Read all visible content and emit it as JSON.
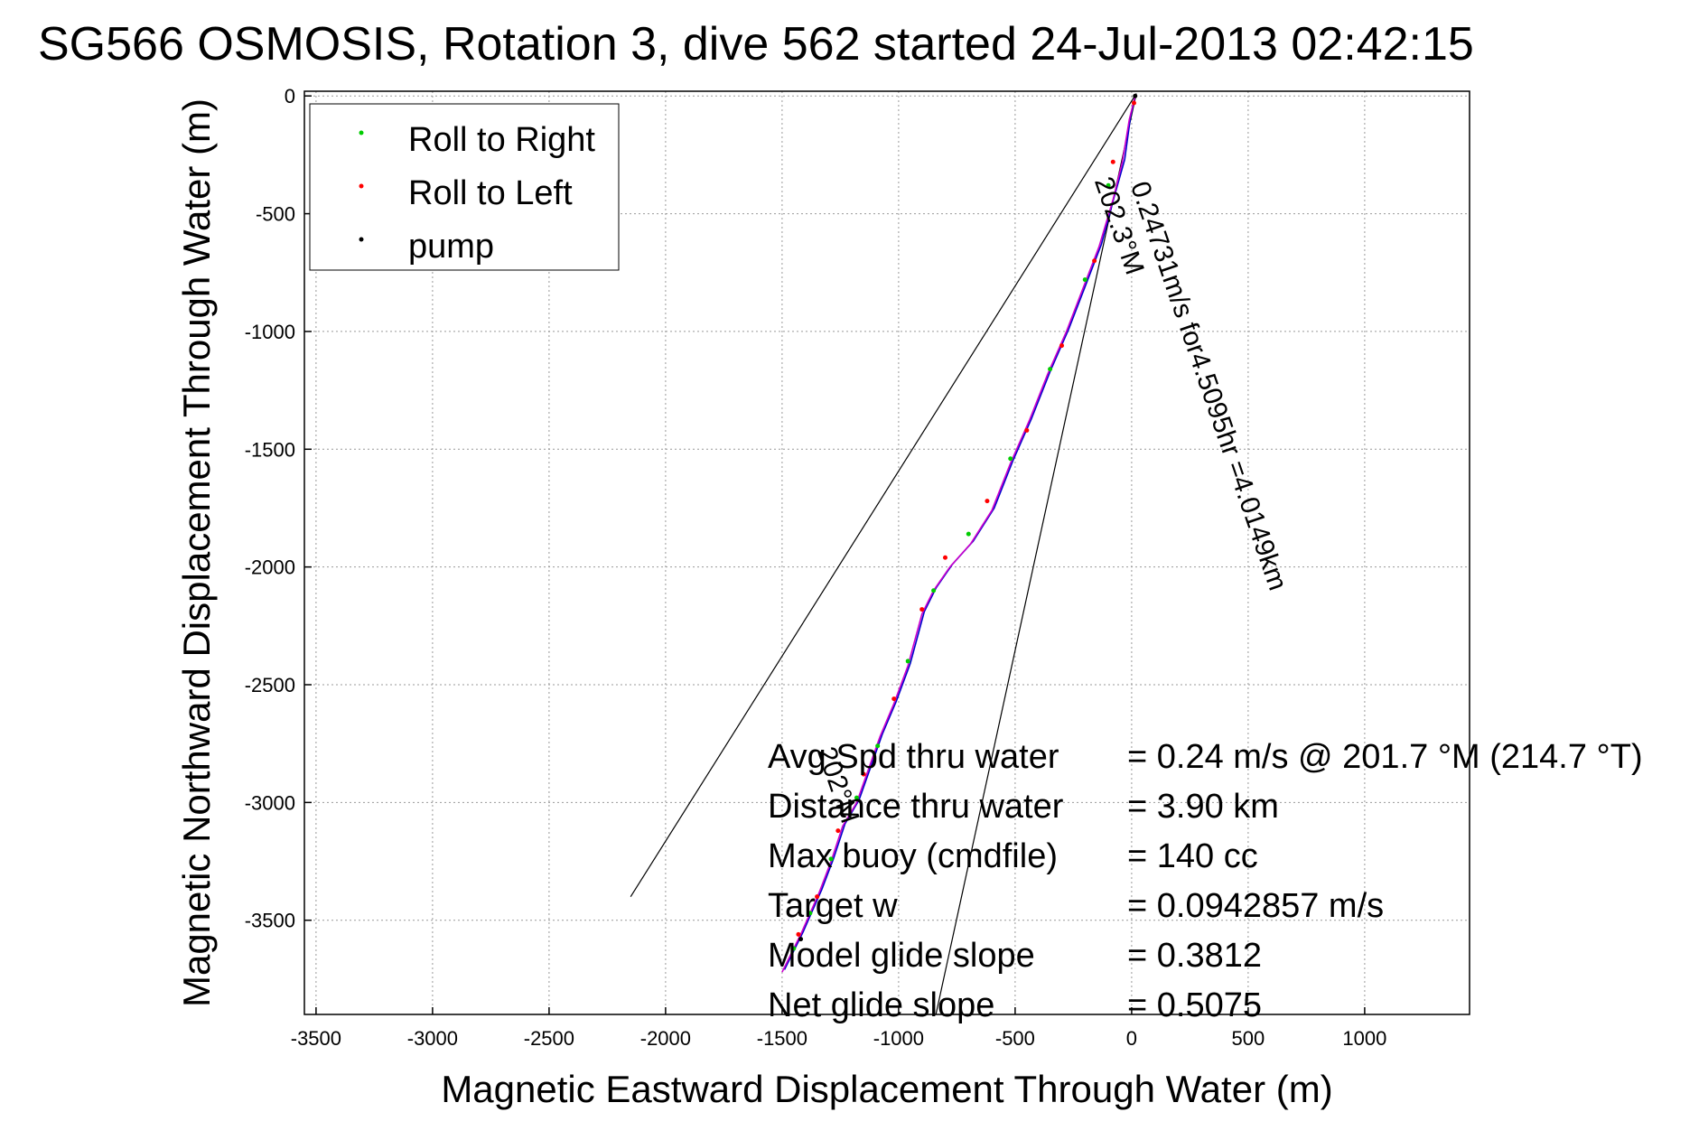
{
  "chart_data": {
    "type": "line",
    "title": "SG566 OSMOSIS, Rotation 3, dive 562 started 24-Jul-2013 02:42:15",
    "xlabel": "Magnetic Eastward Displacement Through Water (m)",
    "ylabel": "Magnetic Northward Displacement Through Water (m)",
    "xlim": [
      -3550,
      1450
    ],
    "ylim": [
      -3900,
      20
    ],
    "xticks": [
      -3500,
      -3000,
      -2500,
      -2000,
      -1500,
      -1000,
      -500,
      0,
      500,
      1000
    ],
    "yticks": [
      0,
      -500,
      -1000,
      -1500,
      -2000,
      -2500,
      -3000,
      -3500
    ],
    "grid": true,
    "legend_position": "top-left",
    "series": [
      {
        "name": "Roll to Right",
        "color": "#00cc00",
        "style": "dot"
      },
      {
        "name": "Roll to Left",
        "color": "#ff0000",
        "style": "dot"
      },
      {
        "name": "pump",
        "color": "#000000",
        "style": "dot"
      }
    ],
    "track": {
      "color": "#cc00cc",
      "x": [
        15,
        -10,
        -40,
        -80,
        -140,
        -210,
        -280,
        -360,
        -440,
        -520,
        -600,
        -690,
        -780,
        -850,
        -900,
        -960,
        -1020,
        -1080,
        -1130,
        -1180,
        -1240,
        -1290,
        -1340,
        -1380,
        -1420,
        -1460,
        -1500
      ],
      "y": [
        0,
        -100,
        -280,
        -440,
        -640,
        -820,
        -1000,
        -1180,
        -1380,
        -1560,
        -1760,
        -1900,
        -2000,
        -2100,
        -2200,
        -2420,
        -2580,
        -2720,
        -2860,
        -3000,
        -3100,
        -3250,
        -3380,
        -3470,
        -3560,
        -3640,
        -3720
      ]
    },
    "current_track": {
      "color": "#0000cc",
      "x": [
        15,
        -5,
        -30,
        -75,
        -130,
        -200,
        -270,
        -350,
        -430,
        -510,
        -590,
        -680,
        -770,
        -840,
        -890,
        -950,
        -1010,
        -1070,
        -1120,
        -1170,
        -1230,
        -1280,
        -1330,
        -1370,
        -1410,
        -1450,
        -1490
      ],
      "y": [
        0,
        -90,
        -270,
        -430,
        -630,
        -810,
        -990,
        -1170,
        -1370,
        -1550,
        -1750,
        -1890,
        -1990,
        -2090,
        -2190,
        -2410,
        -2570,
        -2710,
        -2850,
        -2990,
        -3090,
        -3240,
        -3370,
        -3460,
        -3550,
        -3630,
        -3710
      ]
    },
    "roll_right_points": {
      "x": [
        -100,
        -200,
        -350,
        -520,
        -700,
        -850,
        -960,
        -1090,
        -1180,
        -1290,
        -1380,
        -1450
      ],
      "y": [
        -380,
        -780,
        -1160,
        -1540,
        -1860,
        -2100,
        -2400,
        -2760,
        -2980,
        -3240,
        -3470,
        -3620
      ]
    },
    "roll_left_points": {
      "x": [
        10,
        -80,
        -160,
        -300,
        -450,
        -620,
        -800,
        -900,
        -1020,
        -1150,
        -1260,
        -1350,
        -1430
      ],
      "y": [
        -30,
        -280,
        -700,
        -1060,
        -1420,
        -1720,
        -1960,
        -2180,
        -2560,
        -2880,
        -3120,
        -3400,
        -3560
      ]
    },
    "pump_points": {
      "x": [
        15,
        -1420
      ],
      "y": [
        0,
        -3580
      ]
    },
    "guide_lines": [
      {
        "x": [
          20,
          -2150
        ],
        "y": [
          10,
          -3400
        ]
      },
      {
        "x": [
          20,
          -840
        ],
        "y": [
          10,
          -3900
        ]
      }
    ],
    "annotations": [
      {
        "text": "0.24731m/s for4.5095hr =4.0149km",
        "x": -5,
        "y": -380,
        "rotation": 71
      },
      {
        "text": "202.3°M",
        "x": -160,
        "y": -360,
        "rotation": 71
      },
      {
        "text": "202°M",
        "x": -1350,
        "y": -2780,
        "rotation": 71
      }
    ],
    "stats": [
      {
        "label": "Avg Spd thru water",
        "value": "=  0.24 m/s @ 201.7 °M (214.7 °T)"
      },
      {
        "label": "Distance thru water",
        "value": "=  3.90 km"
      },
      {
        "label": "Max buoy (cmdfile)",
        "value": "= 140 cc"
      },
      {
        "label": "Target w",
        "value": "= 0.0942857 m/s"
      },
      {
        "label": "Model glide slope",
        "value": "= 0.3812"
      },
      {
        "label": "Net glide slope",
        "value": "= 0.5075"
      }
    ]
  }
}
